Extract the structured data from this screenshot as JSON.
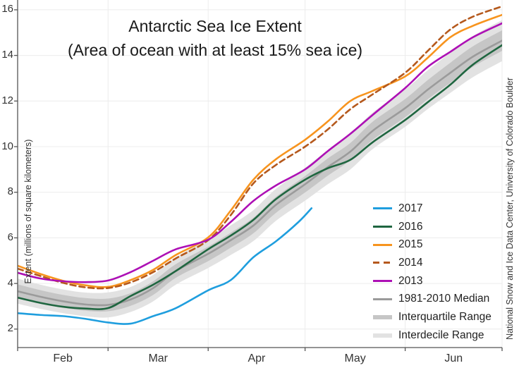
{
  "chart_data": {
    "type": "line",
    "title": "Antarctic Sea Ice Extent",
    "subtitle": "(Area of ocean with at least 15% sea ice)",
    "ylabel": "Extent (millions of square kilometers)",
    "credit": "National Snow and Ice Data Center, University of Colorado Boulder",
    "x_axis": {
      "unit": "day-of-year window (Feb 1 = 0)",
      "end": 150,
      "months": [
        {
          "label": "Feb",
          "start": 0,
          "length": 28
        },
        {
          "label": "Mar",
          "start": 28,
          "length": 31
        },
        {
          "label": "Apr",
          "start": 59,
          "length": 30
        },
        {
          "label": "May",
          "start": 89,
          "length": 31
        },
        {
          "label": "Jun",
          "start": 120,
          "length": 30
        }
      ]
    },
    "y_axis": {
      "ticks": [
        2,
        4,
        6,
        8,
        10,
        12,
        14,
        16
      ],
      "min": 1.19,
      "max": 16.43,
      "grid": true
    },
    "days": [
      0,
      7,
      14,
      21,
      28,
      35,
      42,
      49,
      59,
      66,
      73,
      80,
      89,
      96,
      103,
      110,
      120,
      127,
      134,
      141,
      150
    ],
    "series": [
      {
        "name": "2017",
        "color": "#1f9ede",
        "style": "solid",
        "days": [
          0,
          7,
          14,
          21,
          28,
          35,
          42,
          49,
          59,
          66,
          73,
          80,
          87,
          91
        ],
        "values": [
          2.7,
          2.62,
          2.57,
          2.45,
          2.29,
          2.24,
          2.57,
          2.92,
          3.7,
          4.15,
          5.15,
          5.85,
          6.7,
          7.3
        ]
      },
      {
        "name": "2016",
        "color": "#1f6640",
        "style": "solid",
        "values": [
          3.38,
          3.15,
          2.98,
          2.9,
          2.92,
          3.45,
          3.95,
          4.55,
          5.5,
          6.1,
          6.79,
          7.7,
          8.55,
          9.05,
          9.42,
          10.2,
          11.17,
          11.95,
          12.72,
          13.6,
          14.45
        ]
      },
      {
        "name": "2015",
        "color": "#f7941e",
        "style": "solid",
        "values": [
          4.78,
          4.42,
          4.12,
          3.92,
          3.85,
          4.15,
          4.6,
          5.25,
          6.02,
          7.2,
          8.55,
          9.45,
          10.3,
          11.1,
          12.0,
          12.45,
          13.08,
          13.9,
          14.8,
          15.3,
          15.78
        ]
      },
      {
        "name": "2014",
        "color": "#b5591d",
        "style": "dashed",
        "values": [
          4.65,
          4.33,
          4.03,
          3.83,
          3.8,
          4.05,
          4.5,
          5.1,
          5.9,
          7.0,
          8.39,
          9.2,
          10.0,
          10.75,
          11.64,
          12.3,
          13.24,
          14.2,
          15.14,
          15.7,
          16.15
        ]
      },
      {
        "name": "2013",
        "color": "#ad10b5",
        "style": "solid",
        "values": [
          4.47,
          4.22,
          4.1,
          4.06,
          4.13,
          4.5,
          5.0,
          5.5,
          5.92,
          6.7,
          7.62,
          8.3,
          9.0,
          9.8,
          10.56,
          11.4,
          12.57,
          13.5,
          14.16,
          14.8,
          15.41
        ]
      },
      {
        "name": "1981-2010 Median",
        "color": "#9b9b9b",
        "style": "solid",
        "values": [
          3.66,
          3.42,
          3.22,
          3.08,
          3.06,
          3.3,
          3.8,
          4.55,
          5.3,
          5.9,
          6.54,
          7.45,
          8.35,
          9.1,
          9.78,
          10.7,
          11.69,
          12.5,
          13.24,
          13.95,
          14.65
        ]
      }
    ],
    "bands": [
      {
        "name": "Interdecile Range",
        "color": "#e2e2e2",
        "upper": [
          4.21,
          3.95,
          3.74,
          3.6,
          3.61,
          3.85,
          4.38,
          5.15,
          5.92,
          6.55,
          7.22,
          8.15,
          9.07,
          9.85,
          10.56,
          11.5,
          12.51,
          13.35,
          14.12,
          14.85,
          15.55
        ],
        "lower": [
          3.11,
          2.89,
          2.7,
          2.56,
          2.51,
          2.75,
          3.22,
          3.95,
          4.68,
          5.25,
          5.86,
          6.75,
          7.63,
          8.35,
          9.0,
          9.9,
          10.87,
          11.65,
          12.36,
          13.05,
          13.75
        ]
      },
      {
        "name": "Interquartile Range",
        "color": "#c6c6c6",
        "upper": [
          3.96,
          3.71,
          3.5,
          3.36,
          3.34,
          3.58,
          4.1,
          4.85,
          5.62,
          6.23,
          6.88,
          7.8,
          8.71,
          9.48,
          10.16,
          11.1,
          12.09,
          12.92,
          13.68,
          14.4,
          15.1
        ],
        "lower": [
          3.36,
          3.13,
          2.94,
          2.8,
          2.78,
          3.02,
          3.5,
          4.25,
          4.98,
          5.57,
          6.2,
          7.1,
          7.99,
          8.72,
          9.4,
          10.3,
          11.29,
          12.08,
          12.8,
          13.5,
          14.2
        ]
      }
    ],
    "legend": [
      {
        "label": "2017",
        "kind": "line",
        "color": "#1f9ede"
      },
      {
        "label": "2016",
        "kind": "line",
        "color": "#1f6640"
      },
      {
        "label": "2015",
        "kind": "line",
        "color": "#f7941e"
      },
      {
        "label": "2014",
        "kind": "dashed",
        "color": "#b5591d"
      },
      {
        "label": "2013",
        "kind": "line",
        "color": "#ad10b5"
      },
      {
        "label": "1981-2010 Median",
        "kind": "line",
        "color": "#9b9b9b"
      },
      {
        "label": "Interquartile Range",
        "kind": "band",
        "color": "#c6c6c6"
      },
      {
        "label": "Interdecile Range",
        "kind": "band",
        "color": "#e2e2e2"
      }
    ]
  }
}
